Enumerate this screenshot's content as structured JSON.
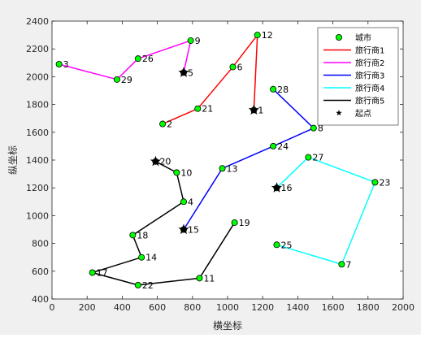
{
  "chart_data": {
    "type": "scatter",
    "xlabel": "横坐标",
    "ylabel": "纵坐标",
    "xlim": [
      0,
      2000
    ],
    "ylim": [
      400,
      2400
    ],
    "x_ticks": [
      0,
      200,
      400,
      600,
      800,
      1000,
      1200,
      1400,
      1600,
      1800,
      2000
    ],
    "y_ticks": [
      400,
      600,
      800,
      1000,
      1200,
      1400,
      1600,
      1800,
      2000,
      2200,
      2400
    ],
    "grid": false,
    "legend_position": "top-right",
    "cities": [
      {
        "id": "1",
        "x": 1150,
        "y": 1760
      },
      {
        "id": "2",
        "x": 630,
        "y": 1660
      },
      {
        "id": "3",
        "x": 40,
        "y": 2090
      },
      {
        "id": "4",
        "x": 750,
        "y": 1100
      },
      {
        "id": "5",
        "x": 750,
        "y": 2030
      },
      {
        "id": "6",
        "x": 1030,
        "y": 2070
      },
      {
        "id": "7",
        "x": 1650,
        "y": 650
      },
      {
        "id": "8",
        "x": 1490,
        "y": 1630
      },
      {
        "id": "9",
        "x": 790,
        "y": 2260
      },
      {
        "id": "10",
        "x": 710,
        "y": 1310
      },
      {
        "id": "11",
        "x": 840,
        "y": 550
      },
      {
        "id": "12",
        "x": 1170,
        "y": 2300
      },
      {
        "id": "13",
        "x": 970,
        "y": 1340
      },
      {
        "id": "14",
        "x": 510,
        "y": 700
      },
      {
        "id": "15",
        "x": 750,
        "y": 900
      },
      {
        "id": "16",
        "x": 1280,
        "y": 1200
      },
      {
        "id": "17",
        "x": 230,
        "y": 590
      },
      {
        "id": "18",
        "x": 460,
        "y": 860
      },
      {
        "id": "19",
        "x": 1040,
        "y": 950
      },
      {
        "id": "20",
        "x": 590,
        "y": 1390
      },
      {
        "id": "21",
        "x": 830,
        "y": 1770
      },
      {
        "id": "22",
        "x": 490,
        "y": 500
      },
      {
        "id": "23",
        "x": 1840,
        "y": 1240
      },
      {
        "id": "24",
        "x": 1260,
        "y": 1500
      },
      {
        "id": "25",
        "x": 1280,
        "y": 790
      },
      {
        "id": "26",
        "x": 490,
        "y": 2130
      },
      {
        "id": "27",
        "x": 1460,
        "y": 1420
      },
      {
        "id": "28",
        "x": 1260,
        "y": 1910
      },
      {
        "id": "29",
        "x": 370,
        "y": 1980
      }
    ],
    "series": [
      {
        "name": "旅行商1",
        "color": "#ff0000",
        "path": [
          "1",
          "12",
          "6",
          "21",
          "2"
        ]
      },
      {
        "name": "旅行商2",
        "color": "#ff00ff",
        "path": [
          "5",
          "9",
          "26",
          "29",
          "3"
        ]
      },
      {
        "name": "旅行商3",
        "color": "#0000ff",
        "path": [
          "15",
          "13",
          "24",
          "8",
          "28"
        ]
      },
      {
        "name": "旅行商4",
        "color": "#00ffff",
        "path": [
          "16",
          "27",
          "23",
          "7",
          "25"
        ]
      },
      {
        "name": "旅行商5",
        "color": "#000000",
        "path": [
          "20",
          "10",
          "4",
          "18",
          "14",
          "17",
          "22",
          "11",
          "19"
        ]
      }
    ],
    "start_points": [
      "1",
      "5",
      "15",
      "16",
      "20"
    ],
    "legend": {
      "city_label": "城市",
      "start_label": "起点"
    },
    "colors": {
      "city_fill": "#00ff00",
      "city_edge": "#000000",
      "start_marker": "#000000"
    }
  }
}
